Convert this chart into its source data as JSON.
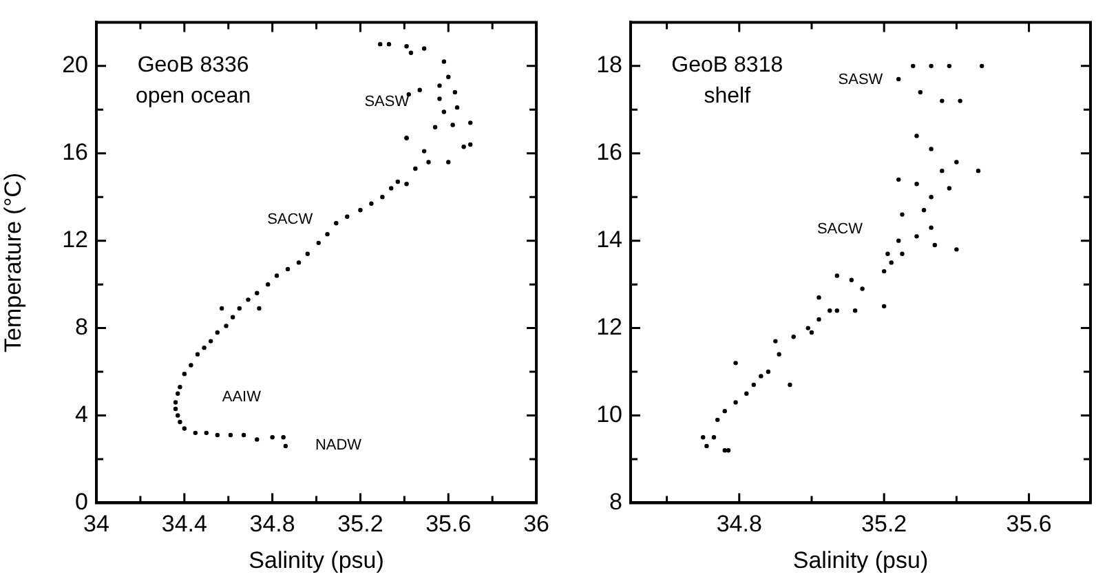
{
  "chart_data": [
    {
      "type": "scatter",
      "xlabel": "Salinity (psu)",
      "ylabel": "Temperature (°C)",
      "marker": "circle",
      "xlim": [
        34,
        36
      ],
      "xticks": [
        34,
        {
          "value": 34.2,
          "label": null
        },
        34.4,
        {
          "value": 34.6,
          "label": null
        },
        34.8,
        {
          "value": 35.0,
          "label": null
        },
        35.2,
        {
          "value": 35.4,
          "label": null
        },
        35.6,
        {
          "value": 35.8,
          "label": null
        },
        36
      ],
      "ylim": [
        0,
        22
      ],
      "yticks": [
        0,
        {
          "value": 2,
          "label": null
        },
        4,
        {
          "value": 6,
          "label": null
        },
        8,
        {
          "value": 10,
          "label": null
        },
        12,
        {
          "value": 14,
          "label": null
        },
        16,
        {
          "value": 18,
          "label": null
        },
        20
      ],
      "annotations": [
        "GeoB 8336",
        "open ocean",
        "SASW",
        "SACW",
        "AAIW",
        "NADW"
      ],
      "series": [
        {
          "color": "#000000",
          "x": [
            34.86,
            34.85,
            34.8,
            34.73,
            34.67,
            34.61,
            34.55,
            34.5,
            34.45,
            34.4,
            34.38,
            34.37,
            34.36,
            34.36,
            34.37,
            34.38,
            34.4,
            34.43,
            34.46,
            34.49,
            34.52,
            34.55,
            34.59,
            34.62,
            34.65,
            34.57,
            34.74,
            34.69,
            34.73,
            34.78,
            34.82,
            34.87,
            34.92,
            34.96,
            35.01,
            35.05,
            35.09,
            35.14,
            35.2,
            35.25,
            35.3,
            35.34,
            35.37,
            35.41,
            35.45,
            35.51,
            35.6,
            35.41,
            35.49,
            35.67,
            35.7,
            35.41,
            35.54,
            35.62,
            35.7,
            35.58,
            35.64,
            35.56,
            35.47,
            35.42,
            35.63,
            35.6,
            35.56,
            35.58,
            35.43,
            35.49,
            35.41,
            35.33,
            35.29
          ],
          "values": [
            2.6,
            3.0,
            3.0,
            2.9,
            3.1,
            3.1,
            3.1,
            3.2,
            3.2,
            3.4,
            3.7,
            4.0,
            4.3,
            4.6,
            5.0,
            5.3,
            5.9,
            6.3,
            6.8,
            7.1,
            7.4,
            7.8,
            8.1,
            8.5,
            8.9,
            8.9,
            8.9,
            9.3,
            9.6,
            10.0,
            10.4,
            10.7,
            11.0,
            11.4,
            11.9,
            12.3,
            12.8,
            13.1,
            13.4,
            13.7,
            14.0,
            14.4,
            14.7,
            14.6,
            15.3,
            15.6,
            15.6,
            16.7,
            16.1,
            16.3,
            16.4,
            16.7,
            17.2,
            17.3,
            17.4,
            17.9,
            18.1,
            18.5,
            18.9,
            18.7,
            18.8,
            19.5,
            19.1,
            20.2,
            20.6,
            20.8,
            20.9,
            21.0,
            21.0
          ]
        }
      ]
    },
    {
      "type": "scatter",
      "xlabel": "Salinity (psu)",
      "marker": "circle",
      "xlim": [
        34.5,
        35.77
      ],
      "xticks": [
        {
          "value": 34.6,
          "label": null
        },
        34.8,
        {
          "value": 35.0,
          "label": null
        },
        35.2,
        {
          "value": 35.4,
          "label": null
        },
        35.6
      ],
      "ylim": [
        8,
        19
      ],
      "yticks": [
        8,
        {
          "value": 9,
          "label": null
        },
        10,
        {
          "value": 11,
          "label": null
        },
        12,
        {
          "value": 13,
          "label": null
        },
        14,
        {
          "value": 15,
          "label": null
        },
        16,
        {
          "value": 17,
          "label": null
        },
        18
      ],
      "annotations": [
        "GeoB 8318",
        "shelf",
        "SASW",
        "SACW"
      ],
      "series": [
        {
          "color": "#000000",
          "x": [
            34.71,
            34.76,
            34.73,
            34.7,
            34.77,
            34.74,
            34.76,
            34.79,
            34.82,
            34.79,
            34.84,
            34.86,
            34.88,
            34.91,
            34.94,
            34.9,
            34.95,
            34.99,
            35.0,
            35.02,
            35.05,
            35.07,
            35.12,
            35.2,
            35.02,
            35.07,
            35.11,
            35.14,
            35.2,
            35.22,
            35.21,
            35.25,
            35.24,
            35.29,
            35.33,
            35.34,
            35.4,
            35.31,
            35.25,
            35.33,
            35.38,
            35.24,
            35.29,
            35.36,
            35.46,
            35.4,
            35.33,
            35.29,
            35.36,
            35.41,
            35.3,
            35.24,
            35.28,
            35.33,
            35.38,
            35.47
          ],
          "values": [
            9.3,
            9.2,
            9.5,
            9.5,
            9.2,
            9.9,
            10.1,
            10.3,
            10.5,
            11.2,
            10.7,
            10.9,
            11.0,
            11.4,
            10.7,
            11.7,
            11.8,
            12.0,
            11.9,
            12.2,
            12.4,
            12.4,
            12.4,
            12.5,
            12.7,
            13.2,
            13.1,
            12.9,
            13.3,
            13.5,
            13.7,
            13.7,
            14.0,
            14.1,
            14.3,
            13.9,
            13.8,
            14.7,
            14.6,
            15.0,
            15.2,
            15.4,
            15.3,
            15.6,
            15.6,
            15.8,
            16.1,
            16.4,
            17.2,
            17.2,
            17.4,
            17.7,
            18.0,
            18.0,
            18.0,
            18.0
          ]
        }
      ]
    }
  ]
}
